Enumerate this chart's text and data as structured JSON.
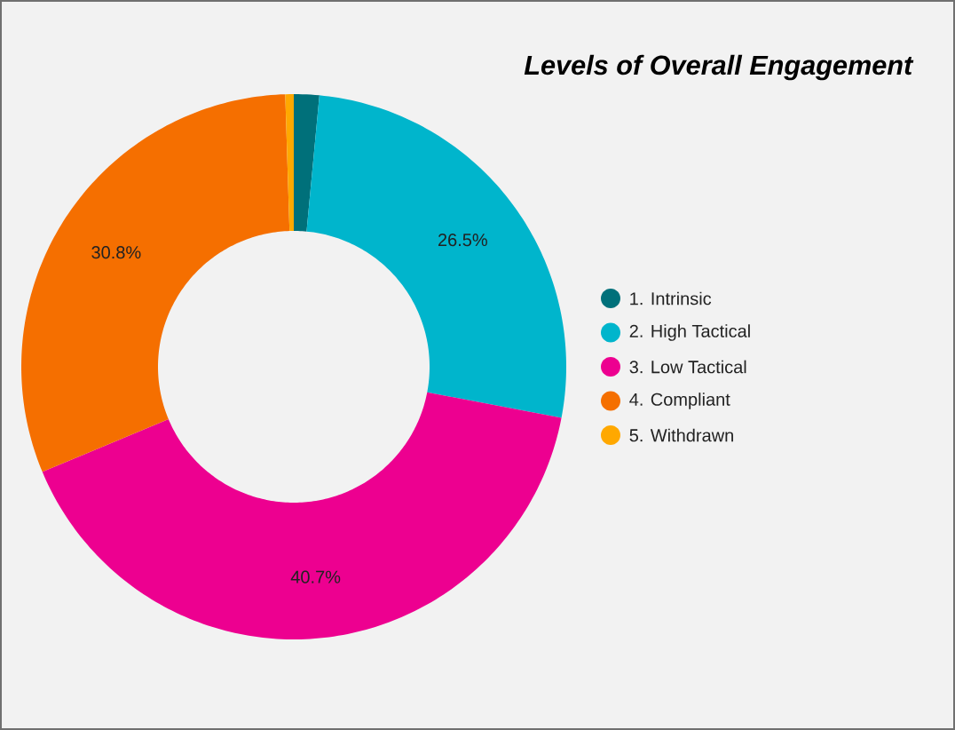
{
  "chart_data": {
    "type": "donut",
    "title": "Levels of Overall Engagement",
    "categories": [
      "1. Intrinsic",
      "2. High Tactical",
      "3. Low Tactical",
      "4. Compliant",
      "5. Withdrawn"
    ],
    "values": [
      1.5,
      26.5,
      40.7,
      30.8,
      0.5
    ],
    "colors": [
      "#00707a",
      "#00b5cc",
      "#ed0090",
      "#f56f00",
      "#ffa800"
    ],
    "value_labels": [
      null,
      "26.5%",
      "40.7%",
      "30.8%",
      null
    ],
    "legend": "right"
  }
}
